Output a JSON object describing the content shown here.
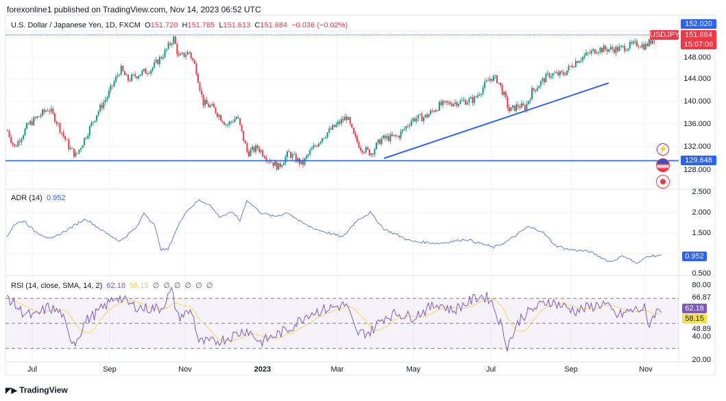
{
  "header": {
    "published": "forexonline1 published on TradingView.com, Nov 14, 2023 06:52 UTC"
  },
  "legend": {
    "symbol": "U.S. Dollar / Japanese Yen, 1D, FXCM",
    "open_label": "O",
    "open": "151.720",
    "high_label": "H",
    "high": "151.785",
    "low_label": "L",
    "low": "151.613",
    "close_label": "C",
    "close": "151.684",
    "change": "−0.036 (−0.02%)"
  },
  "price_axis": {
    "ticks": [
      "148.000",
      "144.000",
      "140.000",
      "136.000",
      "132.000",
      "128.000"
    ],
    "badge_high": "152.020",
    "badge_symbol": "USDJPY",
    "badge_last": "151.684",
    "badge_countdown": "15:07:06",
    "badge_level": "129.648"
  },
  "adr": {
    "label": "ADR (14)",
    "value": "0.952",
    "ticks": [
      "2.500",
      "2.000",
      "1.500",
      "0.500"
    ]
  },
  "rsi": {
    "label": "RSI (14, close, SMA, 14, 2)",
    "value": "62.18",
    "sma": "58.15",
    "empties": [
      "∅",
      "∅",
      "∅",
      "∅",
      "∅",
      "∅"
    ],
    "ticks": [
      "80.00",
      "66.87",
      "48.89",
      "40.00",
      "20.00"
    ]
  },
  "time_axis": [
    "Jul",
    "Sep",
    "Nov",
    "2023",
    "Mar",
    "May",
    "Jul",
    "Sep",
    "Nov"
  ],
  "footer": {
    "brand": "TradingView"
  },
  "colors": {
    "up": "#089981",
    "down": "#f23645",
    "line": "#2962ff",
    "adr": "#5b7fe0",
    "rsi": "#7e57c2",
    "rsi_sma": "#f5d75a"
  },
  "chart_data": [
    {
      "type": "candlestick",
      "title": "U.S. Dollar / Japanese Yen, 1D, FXCM",
      "period": "Jun 2022 – Nov 14 2023",
      "ylim": [
        126,
        153
      ],
      "price_path": [
        [
          "Jun 2022",
          135
        ],
        [
          "Jul 2022",
          137
        ],
        [
          "Aug 2022",
          131
        ],
        [
          "Sep 2022",
          141
        ],
        [
          "Sep 2022",
          145
        ],
        [
          "Oct 2022",
          151.5
        ],
        [
          "Nov 2022",
          140
        ],
        [
          "Dec 2022",
          136
        ],
        [
          "Jan 2023",
          128.5
        ],
        [
          "Feb 2023",
          134
        ],
        [
          "Mar 2023",
          137.5
        ],
        [
          "Mar 2023",
          131
        ],
        [
          "Apr 2023",
          134
        ],
        [
          "May 2023",
          139.5
        ],
        [
          "Jun 2023",
          144.5
        ],
        [
          "Jul 2023",
          138.5
        ],
        [
          "Aug 2023",
          145
        ],
        [
          "Sep 2023",
          147.5
        ],
        [
          "Oct 2023",
          149.5
        ],
        [
          "Nov 2023",
          151.684
        ]
      ],
      "horizontal_levels": [
        152.02,
        129.648
      ],
      "trendline": [
        [
          "Apr 2023",
          129.7
        ],
        [
          "Oct 2023",
          143.2
        ]
      ]
    },
    {
      "type": "line",
      "name": "ADR (14)",
      "ylim": [
        0.4,
        2.6
      ],
      "last": 0.952
    },
    {
      "type": "line",
      "name": "RSI (14)",
      "ylim": [
        15,
        85
      ],
      "bands": [
        30,
        70
      ],
      "last": 62.18,
      "sma_last": 58.15
    }
  ]
}
